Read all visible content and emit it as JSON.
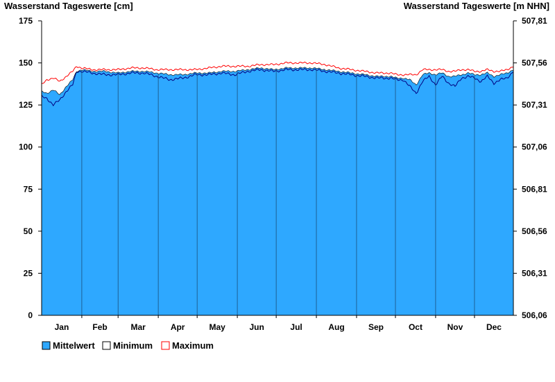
{
  "chart_data": {
    "type": "area",
    "ylabel_left": "Wasserstand Tageswerte [cm]",
    "ylabel_right": "Wasserstand Tageswerte [m NHN]",
    "ylim": [
      0,
      175
    ],
    "yticks_left": [
      0,
      25,
      50,
      75,
      100,
      125,
      150,
      175
    ],
    "yticks_right": [
      "506,06",
      "506,31",
      "506,56",
      "506,81",
      "507,06",
      "507,31",
      "507,56",
      "507,81"
    ],
    "months": [
      "Jan",
      "Feb",
      "Mar",
      "Apr",
      "May",
      "Jun",
      "Jul",
      "Aug",
      "Sep",
      "Oct",
      "Nov",
      "Dec"
    ],
    "grid": false,
    "legend_position": "bottom-left",
    "colors": {
      "mean": "#2ea8ff",
      "minimum": "#000080",
      "maximum": "#ff0000"
    },
    "series": [
      {
        "name": "Mittelwert",
        "x_day": [
          1,
          5,
          10,
          15,
          20,
          25,
          28,
          32,
          40,
          50,
          60,
          70,
          80,
          90,
          100,
          110,
          120,
          130,
          140,
          150,
          160,
          170,
          180,
          190,
          200,
          210,
          220,
          230,
          240,
          250,
          260,
          270,
          275,
          280,
          285,
          290,
          295,
          300,
          305,
          310,
          315,
          320,
          325,
          330,
          335,
          340,
          345,
          350,
          355,
          360,
          365
        ],
        "values": [
          133,
          132,
          134,
          131,
          136,
          140,
          145,
          146,
          145,
          145,
          144,
          145,
          145,
          144,
          143,
          143,
          144,
          144,
          145,
          145,
          146,
          147,
          146,
          147,
          147,
          147,
          146,
          145,
          144,
          143,
          142,
          142,
          141,
          141,
          140,
          137,
          143,
          144,
          143,
          144,
          142,
          142,
          143,
          144,
          143,
          143,
          144,
          142,
          143,
          144,
          146
        ]
      },
      {
        "name": "Minimum",
        "x_day": [
          1,
          5,
          10,
          15,
          20,
          25,
          28,
          32,
          40,
          50,
          60,
          70,
          80,
          90,
          100,
          110,
          120,
          130,
          140,
          150,
          160,
          170,
          180,
          190,
          200,
          210,
          220,
          230,
          240,
          250,
          260,
          270,
          275,
          280,
          285,
          290,
          295,
          300,
          305,
          310,
          315,
          320,
          325,
          330,
          335,
          340,
          345,
          350,
          355,
          360,
          365
        ],
        "values": [
          130,
          129,
          125,
          128,
          133,
          137,
          145,
          145,
          144,
          143,
          143,
          144,
          144,
          142,
          140,
          141,
          143,
          143,
          144,
          143,
          145,
          146,
          145,
          146,
          146,
          146,
          145,
          144,
          143,
          142,
          141,
          141,
          140,
          140,
          136,
          132,
          139,
          142,
          137,
          142,
          138,
          136,
          141,
          142,
          141,
          139,
          142,
          138,
          140,
          141,
          145
        ]
      },
      {
        "name": "Maximum",
        "x_day": [
          1,
          5,
          10,
          15,
          20,
          25,
          28,
          32,
          40,
          50,
          60,
          70,
          80,
          90,
          100,
          110,
          120,
          130,
          140,
          150,
          160,
          170,
          180,
          190,
          200,
          210,
          220,
          230,
          240,
          250,
          260,
          270,
          275,
          280,
          285,
          290,
          295,
          300,
          305,
          310,
          315,
          320,
          325,
          330,
          335,
          340,
          345,
          350,
          355,
          360,
          365
        ],
        "values": [
          137,
          140,
          141,
          139,
          142,
          145,
          148,
          147,
          146,
          146,
          146,
          147,
          147,
          146,
          146,
          146,
          146,
          147,
          148,
          148,
          148,
          149,
          149,
          150,
          150,
          150,
          149,
          147,
          146,
          145,
          144,
          144,
          143,
          143,
          143,
          143,
          146,
          146,
          146,
          146,
          145,
          145,
          146,
          146,
          145,
          145,
          146,
          145,
          145,
          146,
          148
        ]
      }
    ]
  },
  "legend": [
    {
      "label": "Mittelwert",
      "swatch_color": "#2ea8ff",
      "border_color": "#000000"
    },
    {
      "label": "Minimum",
      "swatch_color": "#ffffff",
      "border_color": "#000000"
    },
    {
      "label": "Maximum",
      "swatch_color": "#ffffff",
      "border_color": "#ff0000"
    }
  ]
}
